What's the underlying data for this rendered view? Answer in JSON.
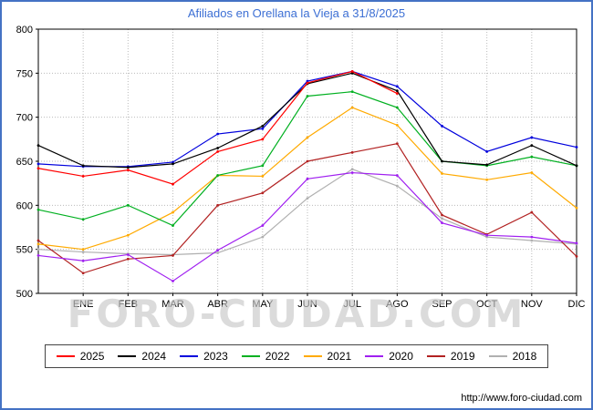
{
  "title": "Afiliados en Orellana la Vieja a 31/8/2025",
  "watermark": "FORO-CIUDAD.COM",
  "footer_url": "http://www.foro-ciudad.com",
  "colors": {
    "frame_border": "#4472c4",
    "title_text": "#3c6fd4",
    "grid": "#bbbbbb",
    "axis": "#000000",
    "watermark": "#c9c9c9"
  },
  "chart_data": {
    "type": "line",
    "title": "Afiliados en Orellana la Vieja a 31/8/2025",
    "x_labels": [
      "",
      "ENE",
      "FEB",
      "MAR",
      "ABR",
      "MAY",
      "JUN",
      "JUL",
      "AGO",
      "SEP",
      "OCT",
      "NOV",
      "DIC"
    ],
    "ylim": [
      500,
      800
    ],
    "ytick_step": 50,
    "ytick_labels": [
      "500",
      "550",
      "600",
      "650",
      "700",
      "750",
      "800"
    ],
    "grid": true,
    "legend_position": "bottom",
    "series": [
      {
        "name": "2025",
        "color": "#ff0000",
        "values": [
          642,
          633,
          640,
          624,
          661,
          675,
          739,
          752,
          727
        ]
      },
      {
        "name": "2024",
        "color": "#000000",
        "values": [
          668,
          645,
          643,
          647,
          665,
          690,
          738,
          750,
          730,
          650,
          646,
          668,
          645
        ]
      },
      {
        "name": "2023",
        "color": "#0000dd",
        "values": [
          647,
          644,
          644,
          649,
          681,
          687,
          741,
          752,
          735,
          690,
          661,
          677,
          666
        ]
      },
      {
        "name": "2022",
        "color": "#00b020",
        "values": [
          595,
          584,
          600,
          577,
          634,
          645,
          724,
          729,
          711,
          650,
          645,
          655,
          645
        ]
      },
      {
        "name": "2021",
        "color": "#ffaa00",
        "values": [
          556,
          550,
          566,
          592,
          634,
          633,
          677,
          711,
          691,
          636,
          629,
          637,
          597
        ]
      },
      {
        "name": "2020",
        "color": "#a020f0",
        "values": [
          543,
          537,
          544,
          514,
          549,
          577,
          630,
          637,
          634,
          580,
          566,
          564,
          557
        ]
      },
      {
        "name": "2019",
        "color": "#b22222",
        "values": [
          560,
          523,
          539,
          543,
          600,
          614,
          650,
          660,
          670,
          589,
          567,
          592,
          542
        ]
      },
      {
        "name": "2018",
        "color": "#b0b0b0",
        "values": [
          550,
          547,
          545,
          544,
          546,
          564,
          608,
          641,
          622,
          585,
          564,
          560,
          556
        ]
      }
    ]
  }
}
